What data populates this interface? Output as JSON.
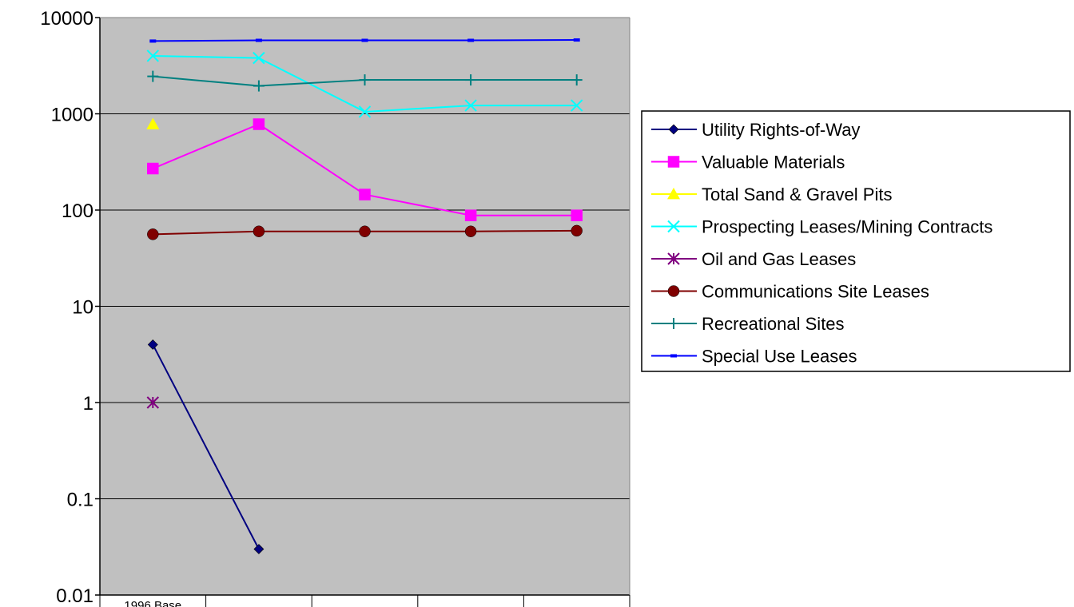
{
  "chart_data": {
    "type": "line",
    "y_scale": "log",
    "ylim": [
      0.01,
      10000
    ],
    "y_ticks": [
      "10000",
      "1000",
      "100",
      "10",
      "1",
      "0.1",
      "0.01"
    ],
    "y_tick_values": [
      10000,
      1000,
      100,
      10,
      1,
      0.1,
      0.01
    ],
    "categories": [
      "1996 Base",
      "",
      "",
      "",
      ""
    ],
    "grid": true,
    "plot_background": "#c0c0c0",
    "legend_position": "right",
    "series": [
      {
        "name": "Utility Rights-of-Way",
        "color": "#000080",
        "marker": "diamond",
        "values": [
          4,
          0.03,
          null,
          null,
          null
        ]
      },
      {
        "name": "Valuable Materials",
        "color": "#ff00ff",
        "marker": "square",
        "values": [
          270,
          780,
          145,
          88,
          88
        ]
      },
      {
        "name": "Total Sand & Gravel Pits",
        "color": "#ffff00",
        "marker": "triangle",
        "values": [
          780,
          null,
          null,
          null,
          null
        ]
      },
      {
        "name": "Prospecting Leases/Mining Contracts",
        "color": "#00ffff",
        "marker": "x",
        "values": [
          4000,
          3800,
          1050,
          1220,
          1220
        ]
      },
      {
        "name": "Oil and Gas Leases",
        "color": "#800080",
        "marker": "asterisk",
        "values": [
          1,
          null,
          null,
          null,
          null
        ]
      },
      {
        "name": "Communications Site Leases",
        "color": "#800000",
        "marker": "circle",
        "values": [
          56,
          60,
          60,
          60,
          61
        ]
      },
      {
        "name": "Recreational Sites",
        "color": "#008080",
        "marker": "plus",
        "values": [
          2450,
          1950,
          2250,
          2250,
          2250
        ]
      },
      {
        "name": "Special Use Leases",
        "color": "#0000ff",
        "marker": "dash",
        "values": [
          5700,
          5800,
          5800,
          5800,
          5850
        ]
      }
    ]
  }
}
